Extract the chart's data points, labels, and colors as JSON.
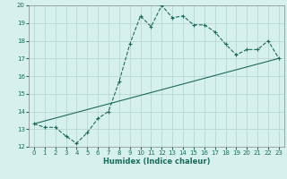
{
  "xlabel": "Humidex (Indice chaleur)",
  "ylabel": "",
  "bg_color": "#d6f0ed",
  "grid_color": "#b8d8d4",
  "line_color": "#1a6b5a",
  "xlim": [
    -0.5,
    23.5
  ],
  "ylim": [
    12,
    20
  ],
  "xticks": [
    0,
    1,
    2,
    3,
    4,
    5,
    6,
    7,
    8,
    9,
    10,
    11,
    12,
    13,
    14,
    15,
    16,
    17,
    18,
    19,
    20,
    21,
    22,
    23
  ],
  "yticks": [
    12,
    13,
    14,
    15,
    16,
    17,
    18,
    19,
    20
  ],
  "curve1_x": [
    0,
    1,
    2,
    3,
    4,
    5,
    6,
    7,
    8,
    9,
    10,
    11,
    12,
    13,
    14,
    15,
    16,
    17,
    18,
    19,
    20,
    21,
    22,
    23
  ],
  "curve1_y": [
    13.3,
    13.1,
    13.1,
    12.6,
    12.2,
    12.8,
    13.6,
    14.0,
    15.7,
    17.8,
    19.4,
    18.8,
    20.0,
    19.3,
    19.4,
    18.9,
    18.9,
    18.5,
    17.8,
    17.2,
    17.5,
    17.5,
    18.0,
    17.0
  ],
  "curve2_x": [
    0,
    23
  ],
  "curve2_y": [
    13.3,
    17.0
  ],
  "tick_labelsize": 5,
  "xlabel_fontsize": 6,
  "linewidth": 0.8,
  "markersize": 3,
  "markeredgewidth": 0.8
}
